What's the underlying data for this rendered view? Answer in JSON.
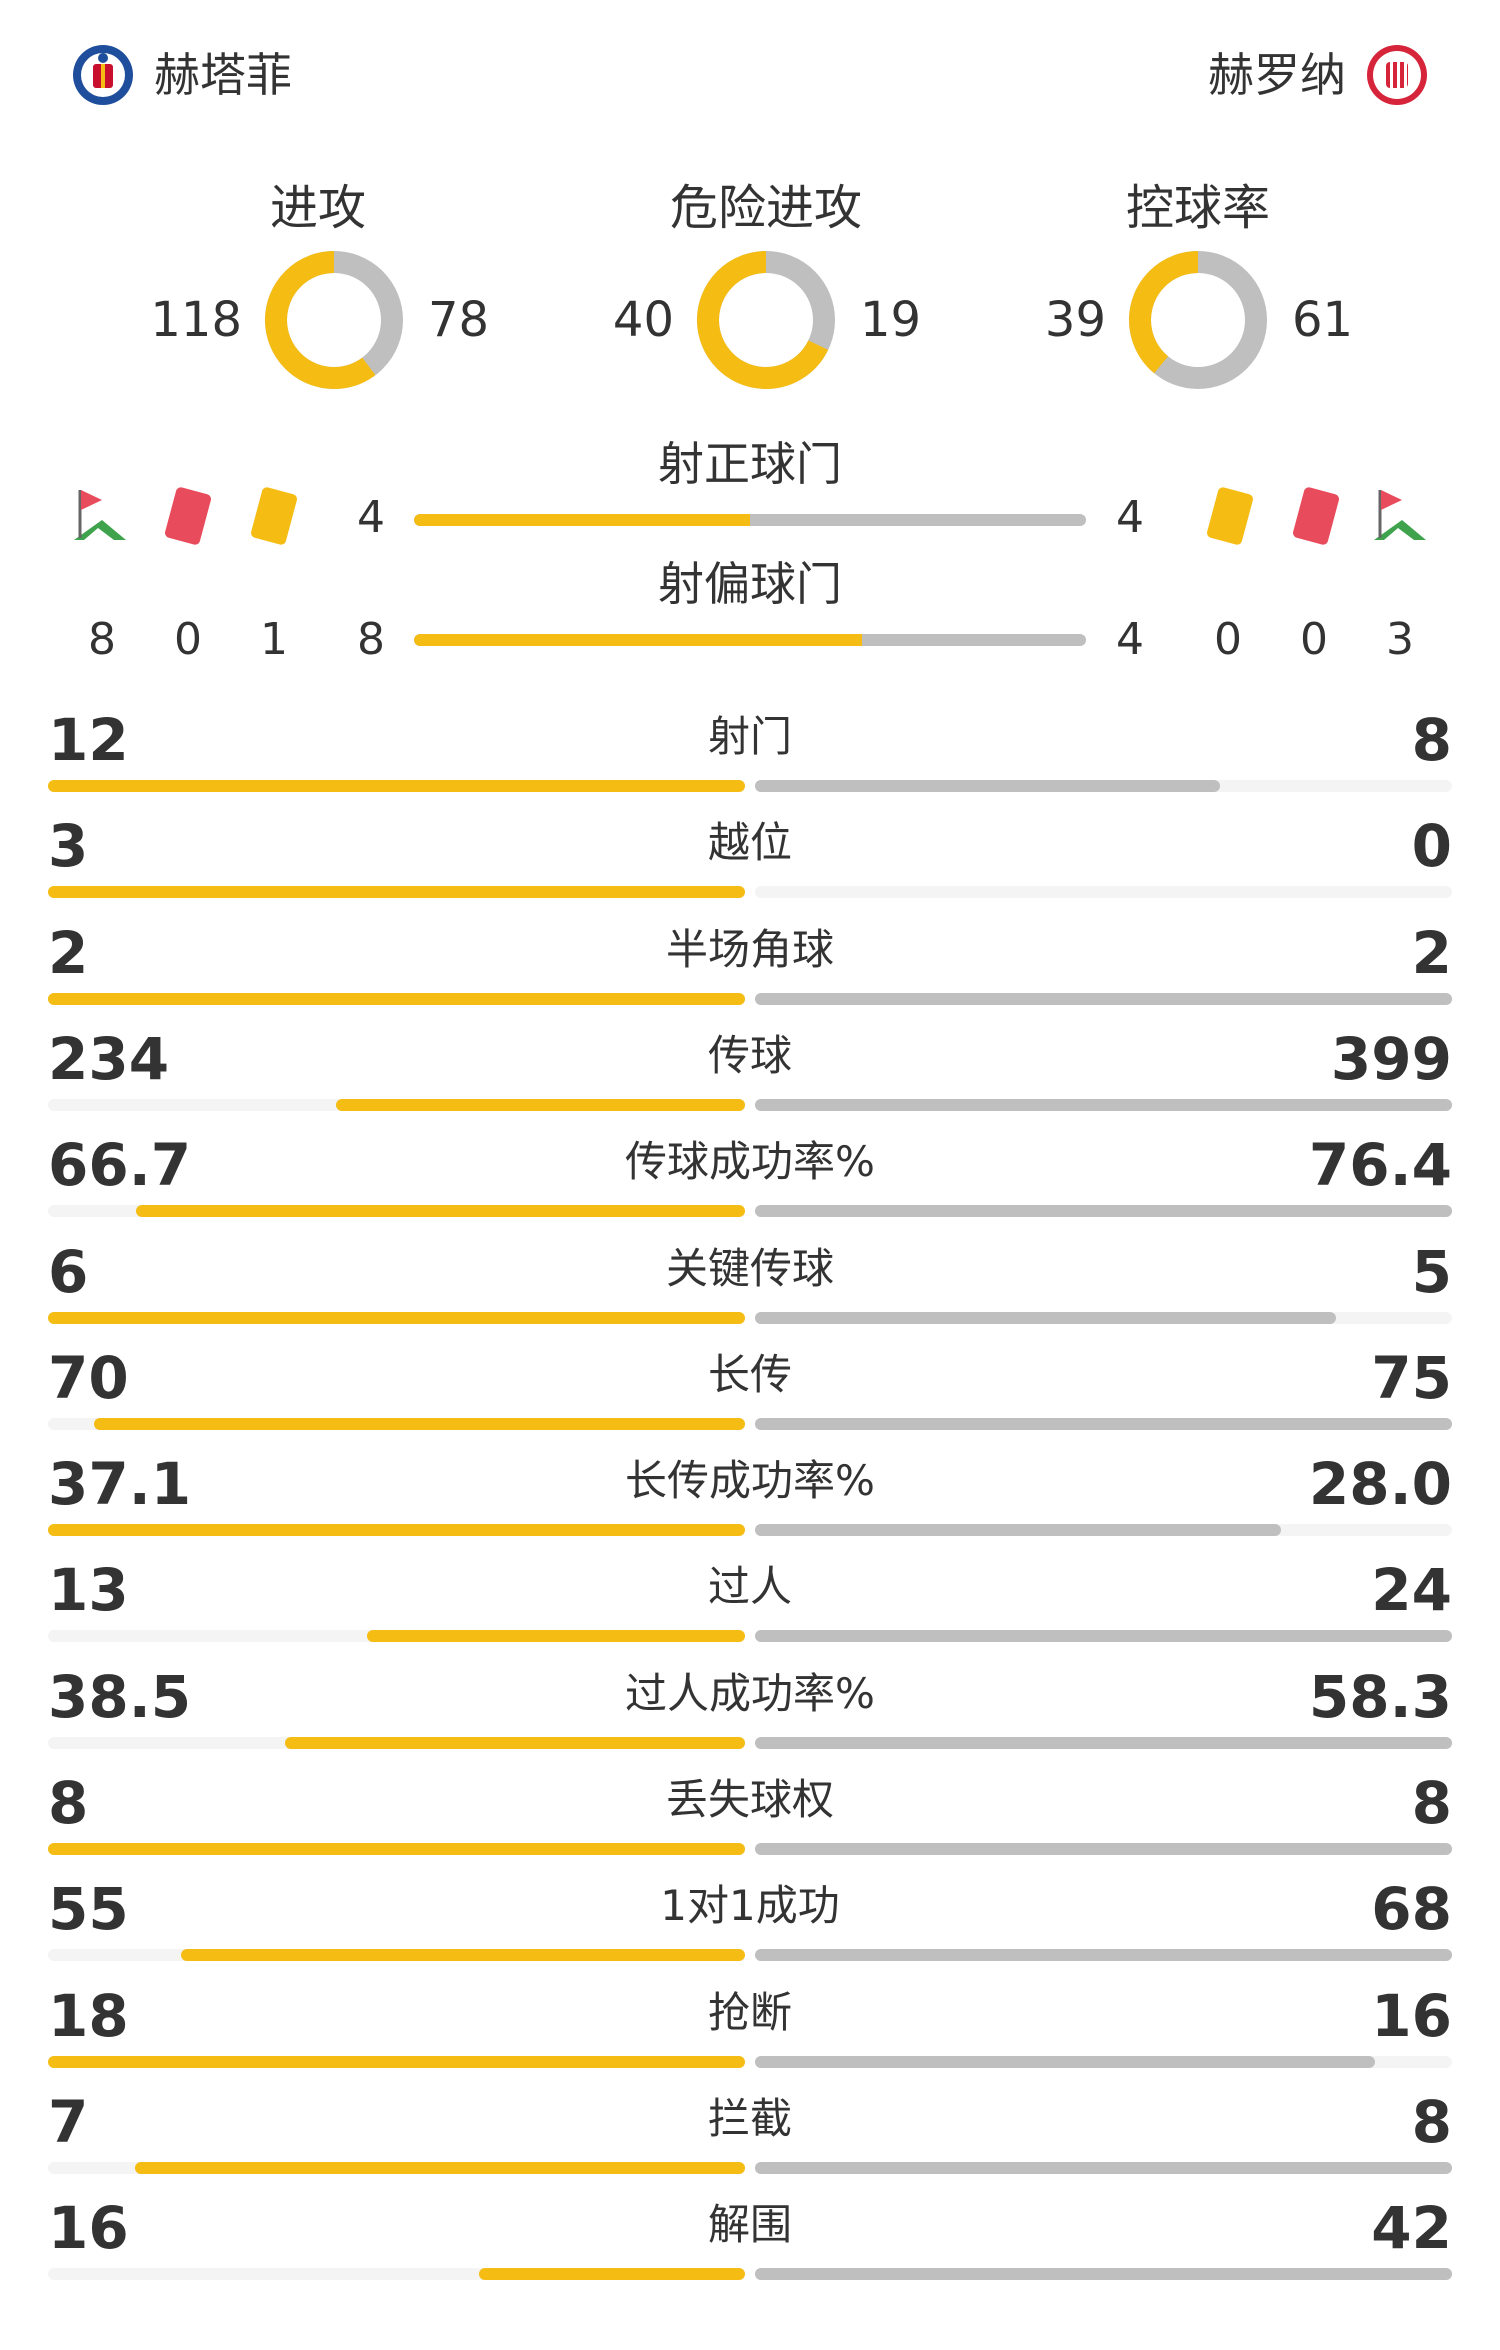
{
  "home": {
    "name": "赫塔菲",
    "color": "#f5bd13",
    "corners": "8",
    "red_cards": "0",
    "yellow_cards": "1",
    "shots_on_target": "4",
    "shots_off_target": "8"
  },
  "away": {
    "name": "赫罗纳",
    "color": "#bfbfbf",
    "corners": "3",
    "red_cards": "0",
    "yellow_cards": "0",
    "shots_on_target": "4",
    "shots_off_target": "4"
  },
  "donuts": [
    {
      "title": "进攻",
      "home": 118,
      "away": 78
    },
    {
      "title": "危险进攻",
      "home": 40,
      "away": 19
    },
    {
      "title": "控球率",
      "home": 39,
      "away": 61
    }
  ],
  "shots": {
    "on_target_label": "射正球门",
    "off_target_label": "射偏球门"
  },
  "icons": {
    "corner": "corner-flag-icon",
    "red": "red-card-icon",
    "yellow": "yellow-card-icon"
  },
  "stats": [
    {
      "label": "射门",
      "home": "12",
      "away": "8"
    },
    {
      "label": "越位",
      "home": "3",
      "away": "0"
    },
    {
      "label": "半场角球",
      "home": "2",
      "away": "2"
    },
    {
      "label": "传球",
      "home": "234",
      "away": "399"
    },
    {
      "label": "传球成功率%",
      "home": "66.7",
      "away": "76.4"
    },
    {
      "label": "关键传球",
      "home": "6",
      "away": "5"
    },
    {
      "label": "长传",
      "home": "70",
      "away": "75"
    },
    {
      "label": "长传成功率%",
      "home": "37.1",
      "away": "28.0"
    },
    {
      "label": "过人",
      "home": "13",
      "away": "24"
    },
    {
      "label": "过人成功率%",
      "home": "38.5",
      "away": "58.3"
    },
    {
      "label": "丢失球权",
      "home": "8",
      "away": "8"
    },
    {
      "label": "1对1成功",
      "home": "55",
      "away": "68"
    },
    {
      "label": "抢断",
      "home": "18",
      "away": "16"
    },
    {
      "label": "拦截",
      "home": "7",
      "away": "8"
    },
    {
      "label": "解围",
      "home": "16",
      "away": "42"
    }
  ]
}
